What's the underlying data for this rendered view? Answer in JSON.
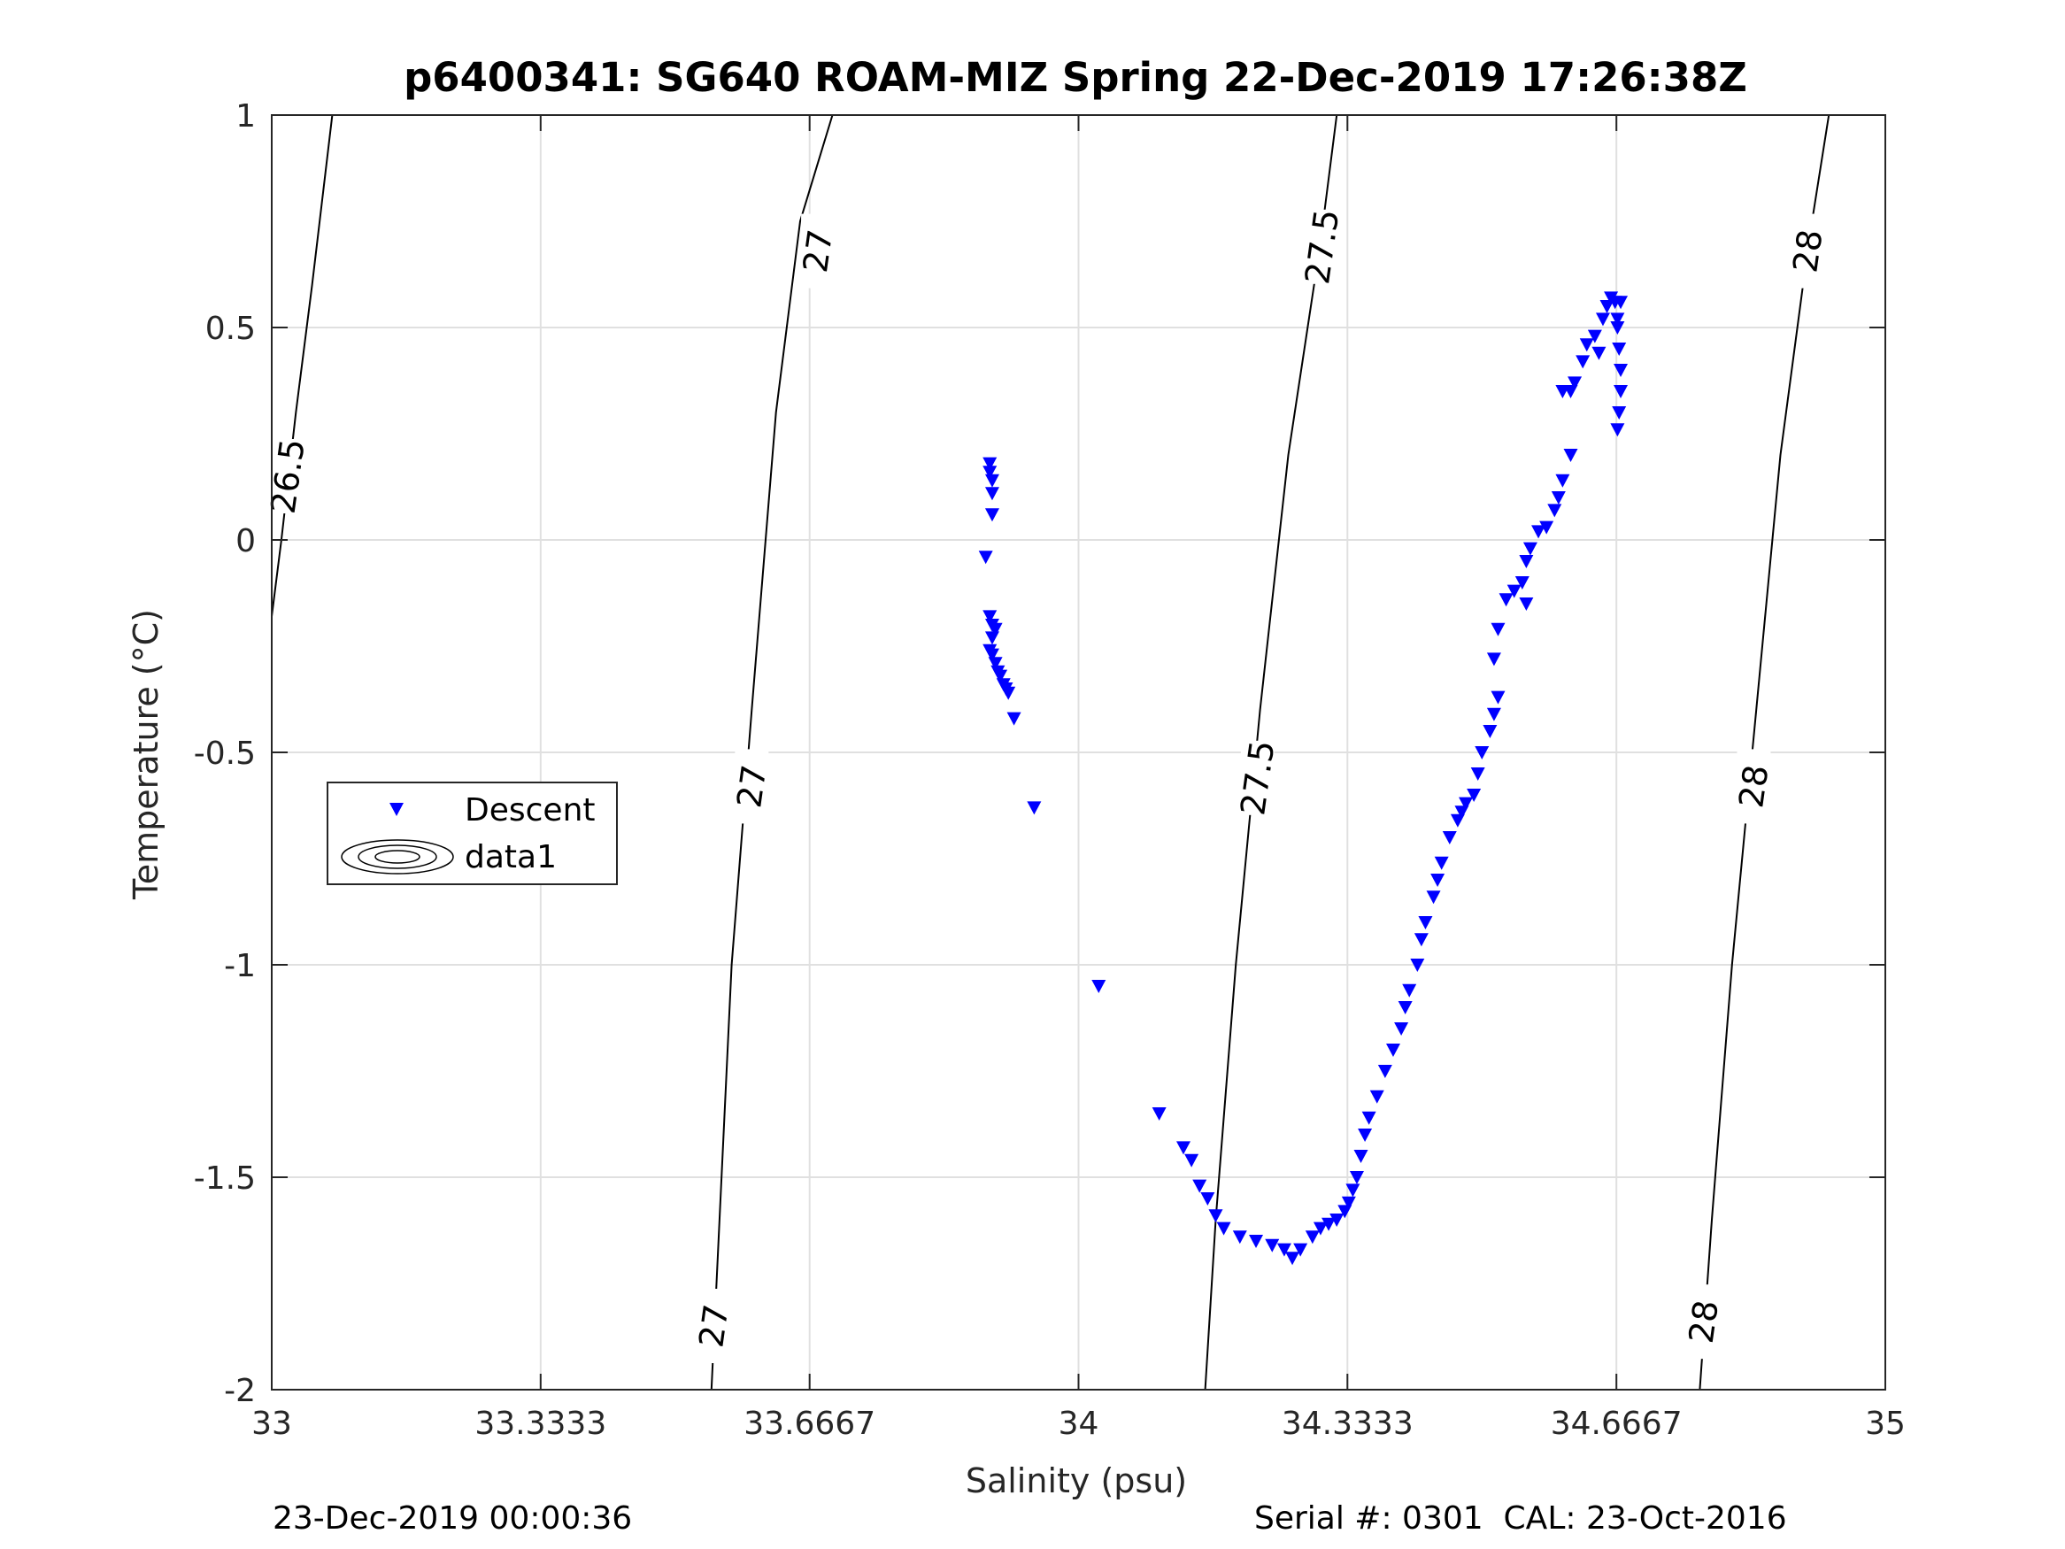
{
  "chart_data": {
    "type": "scatter",
    "title": "p6400341: SG640 ROAM-MIZ Spring 22-Dec-2019 17:26:38Z",
    "xlabel": "Salinity (psu)",
    "ylabel": "Temperature (°C)",
    "xlim": [
      33,
      35
    ],
    "ylim": [
      -2,
      1
    ],
    "xticks": [
      33,
      33.3333,
      33.6667,
      34,
      34.3333,
      34.6667,
      35
    ],
    "xtick_labels": [
      "33",
      "33.3333",
      "33.6667",
      "34",
      "34.3333",
      "34.6667",
      "35"
    ],
    "yticks": [
      -2,
      -1.5,
      -1,
      -0.5,
      0,
      0.5,
      1
    ],
    "ytick_labels": [
      "-2",
      "-1.5",
      "-1",
      "-0.5",
      "0",
      "0.5",
      "1"
    ],
    "grid": true,
    "legend": {
      "placement": "middle-left",
      "entries": [
        "Descent",
        "data1"
      ]
    },
    "colors": {
      "descent": "#0000ff",
      "contour": "#000000",
      "grid": "#e0e0e0"
    },
    "series": [
      {
        "name": "Descent",
        "marker": "down-triangle",
        "points": [
          [
            33.89,
            0.18
          ],
          [
            33.89,
            0.16
          ],
          [
            33.893,
            0.14
          ],
          [
            33.893,
            0.11
          ],
          [
            33.893,
            0.06
          ],
          [
            33.885,
            -0.04
          ],
          [
            33.89,
            -0.18
          ],
          [
            33.893,
            -0.2
          ],
          [
            33.897,
            -0.21
          ],
          [
            33.893,
            -0.23
          ],
          [
            33.89,
            -0.26
          ],
          [
            33.893,
            -0.27
          ],
          [
            33.897,
            -0.29
          ],
          [
            33.9,
            -0.31
          ],
          [
            33.903,
            -0.32
          ],
          [
            33.907,
            -0.34
          ],
          [
            33.91,
            -0.35
          ],
          [
            33.913,
            -0.36
          ],
          [
            33.92,
            -0.42
          ],
          [
            33.945,
            -0.63
          ],
          [
            34.025,
            -1.05
          ],
          [
            34.1,
            -1.35
          ],
          [
            34.13,
            -1.43
          ],
          [
            34.14,
            -1.46
          ],
          [
            34.15,
            -1.52
          ],
          [
            34.16,
            -1.55
          ],
          [
            34.17,
            -1.59
          ],
          [
            34.18,
            -1.62
          ],
          [
            34.2,
            -1.64
          ],
          [
            34.22,
            -1.65
          ],
          [
            34.24,
            -1.66
          ],
          [
            34.255,
            -1.67
          ],
          [
            34.265,
            -1.69
          ],
          [
            34.275,
            -1.67
          ],
          [
            34.29,
            -1.64
          ],
          [
            34.3,
            -1.62
          ],
          [
            34.31,
            -1.61
          ],
          [
            34.32,
            -1.6
          ],
          [
            34.33,
            -1.58
          ],
          [
            34.335,
            -1.56
          ],
          [
            34.34,
            -1.53
          ],
          [
            34.345,
            -1.5
          ],
          [
            34.35,
            -1.45
          ],
          [
            34.355,
            -1.4
          ],
          [
            34.36,
            -1.36
          ],
          [
            34.37,
            -1.31
          ],
          [
            34.38,
            -1.25
          ],
          [
            34.39,
            -1.2
          ],
          [
            34.4,
            -1.15
          ],
          [
            34.405,
            -1.1
          ],
          [
            34.41,
            -1.06
          ],
          [
            34.42,
            -1.0
          ],
          [
            34.425,
            -0.94
          ],
          [
            34.43,
            -0.9
          ],
          [
            34.44,
            -0.84
          ],
          [
            34.445,
            -0.8
          ],
          [
            34.45,
            -0.76
          ],
          [
            34.46,
            -0.7
          ],
          [
            34.47,
            -0.66
          ],
          [
            34.475,
            -0.64
          ],
          [
            34.48,
            -0.62
          ],
          [
            34.49,
            -0.6
          ],
          [
            34.495,
            -0.55
          ],
          [
            34.5,
            -0.5
          ],
          [
            34.51,
            -0.45
          ],
          [
            34.515,
            -0.41
          ],
          [
            34.52,
            -0.37
          ],
          [
            34.515,
            -0.28
          ],
          [
            34.52,
            -0.21
          ],
          [
            34.53,
            -0.14
          ],
          [
            34.54,
            -0.12
          ],
          [
            34.555,
            -0.15
          ],
          [
            34.55,
            -0.1
          ],
          [
            34.555,
            -0.05
          ],
          [
            34.56,
            -0.02
          ],
          [
            34.57,
            0.02
          ],
          [
            34.58,
            0.03
          ],
          [
            34.59,
            0.07
          ],
          [
            34.595,
            0.1
          ],
          [
            34.6,
            0.14
          ],
          [
            34.61,
            0.2
          ],
          [
            34.6,
            0.35
          ],
          [
            34.61,
            0.35
          ],
          [
            34.615,
            0.37
          ],
          [
            34.625,
            0.42
          ],
          [
            34.63,
            0.46
          ],
          [
            34.64,
            0.48
          ],
          [
            34.645,
            0.44
          ],
          [
            34.65,
            0.52
          ],
          [
            34.655,
            0.55
          ],
          [
            34.66,
            0.57
          ],
          [
            34.665,
            0.56
          ],
          [
            34.668,
            0.5
          ],
          [
            34.67,
            0.45
          ],
          [
            34.672,
            0.4
          ],
          [
            34.672,
            0.35
          ],
          [
            34.67,
            0.3
          ],
          [
            34.668,
            0.26
          ],
          [
            34.672,
            0.56
          ],
          [
            34.668,
            0.52
          ]
        ]
      }
    ],
    "contours": [
      {
        "level": "26.5",
        "points": [
          [
            33.0,
            -0.18
          ],
          [
            33.012,
            0.0
          ],
          [
            33.03,
            0.3
          ],
          [
            33.05,
            0.6
          ],
          [
            33.075,
            1.0
          ]
        ],
        "labels": [
          {
            "text": "26.5",
            "at": [
              33.02,
              0.15
            ]
          }
        ]
      },
      {
        "level": "27",
        "points": [
          [
            33.545,
            -2.0
          ],
          [
            33.555,
            -1.6
          ],
          [
            33.57,
            -1.0
          ],
          [
            33.595,
            -0.4
          ],
          [
            33.625,
            0.3
          ],
          [
            33.655,
            0.75
          ],
          [
            33.695,
            1.0
          ]
        ],
        "labels": [
          {
            "text": "27",
            "at": [
              33.548,
              -1.85
            ]
          },
          {
            "text": "27",
            "at": [
              33.595,
              -0.58
            ]
          },
          {
            "text": "27",
            "at": [
              33.677,
              0.68
            ]
          }
        ]
      },
      {
        "level": "27.5",
        "points": [
          [
            34.157,
            -2.0
          ],
          [
            34.17,
            -1.6
          ],
          [
            34.195,
            -1.0
          ],
          [
            34.225,
            -0.4
          ],
          [
            34.26,
            0.2
          ],
          [
            34.3,
            0.7
          ],
          [
            34.32,
            1.0
          ]
        ],
        "labels": [
          {
            "text": "27.5",
            "at": [
              34.222,
              -0.56
            ]
          },
          {
            "text": "27.5",
            "at": [
              34.302,
              0.69
            ]
          }
        ]
      },
      {
        "level": "28",
        "points": [
          [
            34.77,
            -2.0
          ],
          [
            34.785,
            -1.6
          ],
          [
            34.81,
            -1.0
          ],
          [
            34.84,
            -0.4
          ],
          [
            34.87,
            0.2
          ],
          [
            34.905,
            0.7
          ],
          [
            34.93,
            1.0
          ]
        ],
        "labels": [
          {
            "text": "28",
            "at": [
              34.775,
              -1.84
            ]
          },
          {
            "text": "28",
            "at": [
              34.837,
              -0.58
            ]
          },
          {
            "text": "28",
            "at": [
              34.904,
              0.68
            ]
          }
        ]
      }
    ]
  },
  "footer": {
    "timestamp": "23-Dec-2019 00:00:36",
    "serial": "Serial #: 0301  CAL: 23-Oct-2016"
  }
}
